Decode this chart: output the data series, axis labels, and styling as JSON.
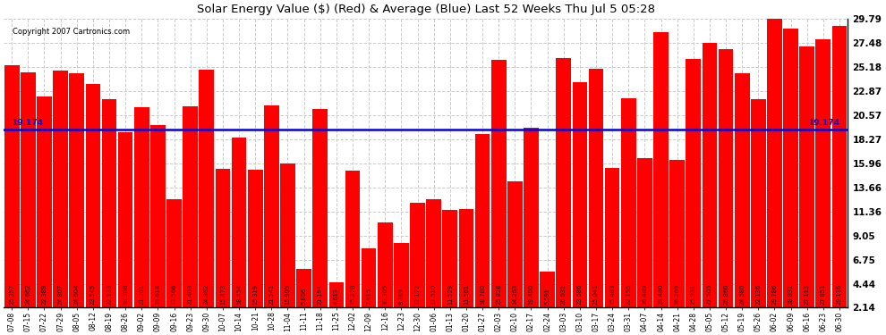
{
  "title": "Solar Energy Value ($) (Red) & Average (Blue) Last 52 Weeks Thu Jul 5 05:28",
  "copyright": "Copyright 2007 Cartronics.com",
  "average": 19.174,
  "average_label": "19.174",
  "bar_color": "#ff0000",
  "avg_line_color": "#0000dd",
  "background_color": "#ffffff",
  "plot_bg_color": "#ffffff",
  "ylim_min": 2.14,
  "ylim_max": 29.79,
  "yticks": [
    2.14,
    4.44,
    6.75,
    9.05,
    11.36,
    13.66,
    15.96,
    18.27,
    20.57,
    22.87,
    25.18,
    27.48,
    29.79
  ],
  "categories": [
    "07-08",
    "07-15",
    "07-22",
    "07-29",
    "08-05",
    "08-12",
    "08-19",
    "08-26",
    "09-02",
    "09-09",
    "09-16",
    "09-23",
    "09-30",
    "10-07",
    "10-14",
    "10-21",
    "10-28",
    "11-04",
    "11-11",
    "11-18",
    "11-25",
    "12-02",
    "12-09",
    "12-16",
    "12-23",
    "12-30",
    "01-06",
    "01-13",
    "01-20",
    "01-27",
    "02-03",
    "02-10",
    "02-17",
    "02-24",
    "03-03",
    "03-10",
    "03-17",
    "03-24",
    "03-31",
    "04-07",
    "04-14",
    "04-21",
    "04-28",
    "05-05",
    "05-12",
    "05-19",
    "05-26",
    "06-02",
    "06-09",
    "06-16",
    "06-23",
    "06-30"
  ],
  "values": [
    25.357,
    24.662,
    22.389,
    24.807,
    24.604,
    23.545,
    22.133,
    18.908,
    21.301,
    19.618,
    12.566,
    21.403,
    24.882,
    15.473,
    18.454,
    15.319,
    21.541,
    15.905,
    5.866,
    21.194,
    4.613,
    15.278,
    7.815,
    10.305,
    8.369,
    12.172,
    12.51,
    11.529,
    11.561,
    18.78,
    25.828,
    14.263,
    19.4,
    5.591,
    26.031,
    23.686,
    25.041,
    15.483,
    22.155,
    16.489,
    28.48,
    16.269,
    25.931,
    27.505,
    26.86,
    24.58,
    22.136,
    29.786,
    28.831,
    27.113,
    27.851,
    29.136
  ]
}
